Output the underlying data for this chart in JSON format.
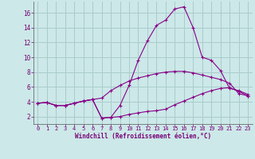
{
  "xlabel": "Windchill (Refroidissement éolien,°C)",
  "bg_color": "#cce8e8",
  "grid_color": "#aacccc",
  "line_color": "#880088",
  "x_ticks": [
    0,
    1,
    2,
    3,
    4,
    5,
    6,
    7,
    8,
    9,
    10,
    11,
    12,
    13,
    14,
    15,
    16,
    17,
    18,
    19,
    20,
    21,
    22,
    23
  ],
  "y_ticks": [
    2,
    4,
    6,
    8,
    10,
    12,
    14,
    16
  ],
  "xlim": [
    -0.5,
    23.5
  ],
  "ylim": [
    1.0,
    17.5
  ],
  "series1_x": [
    0,
    1,
    2,
    3,
    4,
    5,
    6,
    7,
    8,
    9,
    10,
    11,
    12,
    13,
    14,
    15,
    16,
    17,
    18,
    19,
    20,
    21,
    22,
    23
  ],
  "series1_y": [
    3.8,
    3.9,
    3.5,
    3.5,
    3.8,
    4.1,
    4.3,
    4.5,
    5.5,
    6.2,
    6.8,
    7.2,
    7.5,
    7.8,
    8.0,
    8.1,
    8.1,
    7.9,
    7.6,
    7.3,
    7.0,
    6.5,
    5.1,
    4.8
  ],
  "series2_x": [
    0,
    1,
    2,
    3,
    4,
    5,
    6,
    7,
    8,
    9,
    10,
    11,
    12,
    13,
    14,
    15,
    16,
    17,
    18,
    19,
    20,
    21,
    22,
    23
  ],
  "series2_y": [
    3.8,
    3.9,
    3.5,
    3.5,
    3.8,
    4.1,
    4.3,
    1.8,
    1.9,
    3.5,
    6.2,
    9.6,
    12.2,
    14.3,
    15.0,
    16.5,
    16.8,
    14.0,
    10.0,
    9.6,
    8.2,
    5.8,
    5.5,
    5.0
  ],
  "series3_x": [
    0,
    1,
    2,
    3,
    4,
    5,
    6,
    7,
    8,
    9,
    10,
    11,
    12,
    13,
    14,
    15,
    16,
    17,
    18,
    19,
    20,
    21,
    22,
    23
  ],
  "series3_y": [
    3.8,
    3.9,
    3.5,
    3.5,
    3.8,
    4.1,
    4.3,
    1.8,
    1.9,
    2.0,
    2.3,
    2.5,
    2.7,
    2.8,
    3.0,
    3.6,
    4.1,
    4.6,
    5.1,
    5.5,
    5.8,
    5.9,
    5.4,
    4.8
  ]
}
